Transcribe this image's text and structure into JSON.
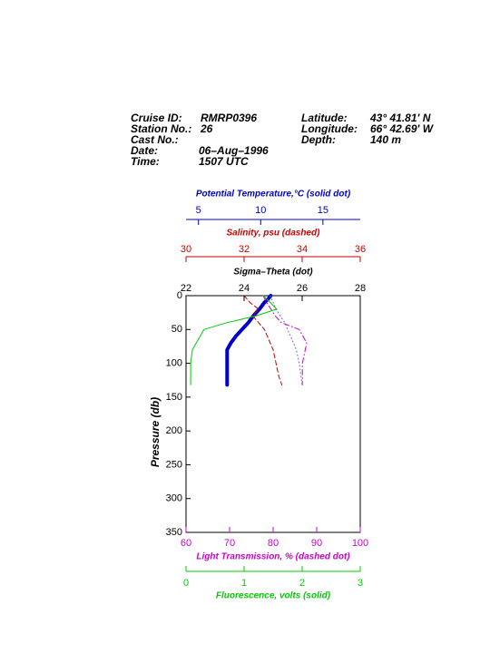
{
  "header": {
    "left": [
      {
        "label": "Cruise ID:",
        "value": "RMRP0396"
      },
      {
        "label": "Station No.:",
        "value": "26"
      },
      {
        "label": "Cast No.:"
      },
      {
        "label": "Date:",
        "value": "06–Aug–1996"
      },
      {
        "label": "Time:",
        "value": "1507 UTC"
      }
    ],
    "right": [
      {
        "label": "Latitude:",
        "value": "43° 41.81' N"
      },
      {
        "label": "Longitude:",
        "value": "66° 42.69' W"
      },
      {
        "label": "Depth:",
        "value": "140 m"
      }
    ]
  },
  "chart_data": {
    "type": "line",
    "ylabel": "Pressure (db)",
    "ylim": [
      0,
      350
    ],
    "yticks": [
      0,
      50,
      100,
      150,
      200,
      250,
      300,
      350
    ],
    "series": [
      {
        "name": "Potential Temperature,°C (solid dot)",
        "color": "#0000cc",
        "xlim": [
          4,
          18
        ],
        "xticks": [
          5,
          10,
          15
        ],
        "pressure": [
          0,
          5,
          10,
          20,
          30,
          40,
          50,
          60,
          70,
          80,
          100,
          120,
          132
        ],
        "values": [
          10.8,
          10.6,
          10.3,
          9.9,
          9.4,
          9.0,
          8.5,
          8.0,
          7.6,
          7.3,
          7.3,
          7.3,
          7.3
        ]
      },
      {
        "name": "Salinity, psu  (dashed)",
        "color": "#cc0000",
        "xlim": [
          30,
          36
        ],
        "xticks": [
          30,
          32,
          34,
          36
        ],
        "pressure": [
          0,
          10,
          20,
          30,
          40,
          50,
          60,
          70,
          80,
          100,
          120,
          132
        ],
        "values": [
          32.0,
          32.2,
          32.5,
          32.3,
          32.5,
          32.7,
          32.8,
          32.9,
          33.0,
          33.1,
          33.2,
          33.3
        ]
      },
      {
        "name": "Sigma–Theta (dot)",
        "color": "#6666cc",
        "xlim": [
          22,
          28
        ],
        "xticks": [
          22,
          24,
          26,
          28
        ],
        "pressure": [
          0,
          20,
          40,
          60,
          80,
          100,
          132
        ],
        "values": [
          24.9,
          25.1,
          25.4,
          25.6,
          25.8,
          25.9,
          26.0
        ]
      },
      {
        "name": "Light Transmission, % (dashed dot)",
        "color": "#cc00cc",
        "xlim": [
          60,
          100
        ],
        "xticks": [
          60,
          70,
          80,
          90,
          100
        ],
        "pressure": [
          0,
          10,
          20,
          30,
          40,
          50,
          70,
          100,
          132
        ],
        "values": [
          77.7,
          78.5,
          79.5,
          80.5,
          81.9,
          86.0,
          87.7,
          86.7,
          86.7
        ]
      },
      {
        "name": "Fluorescence, volts (solid)",
        "color": "#00cc00",
        "xlim": [
          0,
          3
        ],
        "xticks": [
          0,
          1,
          2,
          3
        ],
        "pressure": [
          0,
          10,
          20,
          30,
          40,
          50,
          80,
          100,
          132
        ],
        "values": [
          1.33,
          1.45,
          1.56,
          1.2,
          0.7,
          0.31,
          0.11,
          0.08,
          0.08
        ]
      }
    ]
  }
}
